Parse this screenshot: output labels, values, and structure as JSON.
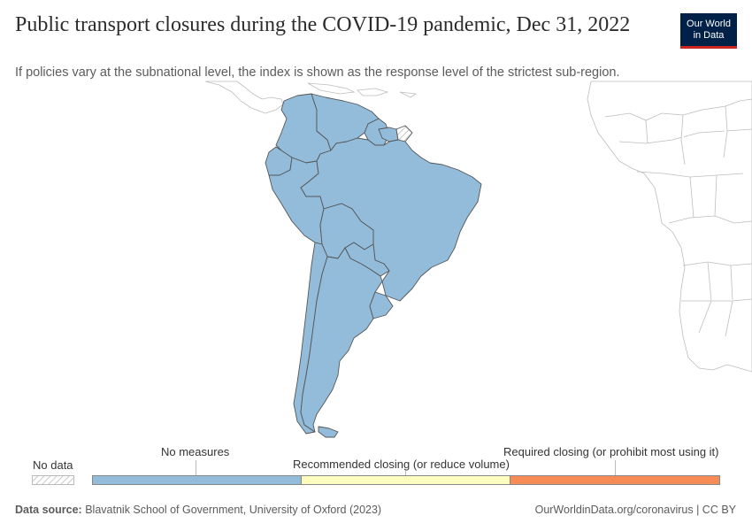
{
  "header": {
    "title": "Public transport closures during the COVID-19 pandemic, Dec 31, 2022",
    "subtitle": "If policies vary at the subnational level, the index is shown as the response level of the strictest sub-region.",
    "logo_line1": "Our World",
    "logo_line2": "in Data"
  },
  "legend": {
    "no_data": "No data",
    "items": [
      {
        "label": "No measures",
        "color": "#93bcda"
      },
      {
        "label": "Recommended closing (or reduce volume)",
        "color": "#fdfdc0"
      },
      {
        "label": "Required closing (or prohibit most using it)",
        "color": "#f78b55"
      }
    ]
  },
  "footer": {
    "source_label": "Data source:",
    "source_text": "Blavatnik School of Government, University of Oxford (2023)",
    "link": "OurWorldinData.org/coronavirus | CC BY"
  },
  "map_colors": {
    "south_america": "#93bcda",
    "border": "#555555",
    "other_land": "#ffffff",
    "other_border": "#bdbdbd"
  }
}
